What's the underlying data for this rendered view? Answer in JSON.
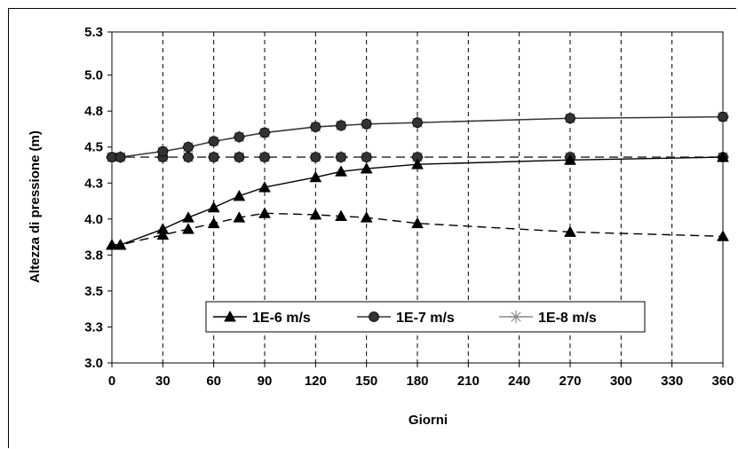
{
  "chart_data": {
    "type": "line",
    "xlabel": "Giorni",
    "ylabel": "Altezza di pressione (m)",
    "xlim": [
      0,
      360
    ],
    "ylim": [
      3.0,
      5.3
    ],
    "x_ticks": [
      0,
      30,
      60,
      90,
      120,
      150,
      180,
      210,
      240,
      270,
      300,
      330,
      360
    ],
    "y_ticks": [
      3.0,
      3.25,
      3.5,
      3.75,
      4.0,
      4.25,
      4.5,
      4.75,
      5.0,
      5.3
    ],
    "y_tick_labels": [
      "3.0",
      "3.3",
      "3.5",
      "3.8",
      "4.0",
      "4.3",
      "4.5",
      "4.8",
      "5.0",
      "5.3"
    ],
    "grid": "vertical dashed",
    "legend_position": "lower-center",
    "series": [
      {
        "name": "1E-6 m/s",
        "marker": "triangle",
        "color": "#000000",
        "solid": {
          "x": [
            0,
            5,
            30,
            45,
            60,
            75,
            90,
            120,
            135,
            150,
            180,
            270,
            360
          ],
          "y": [
            3.82,
            3.82,
            3.93,
            4.01,
            4.08,
            4.16,
            4.22,
            4.29,
            4.33,
            4.35,
            4.38,
            4.41,
            4.43
          ]
        },
        "dashed": {
          "x": [
            0,
            5,
            30,
            45,
            60,
            75,
            90,
            120,
            135,
            150,
            180,
            270,
            360
          ],
          "y": [
            3.82,
            3.82,
            3.89,
            3.93,
            3.97,
            4.01,
            4.04,
            4.03,
            4.02,
            4.01,
            3.97,
            3.91,
            3.88
          ]
        }
      },
      {
        "name": "1E-7 m/s",
        "marker": "circle",
        "color": "#333333",
        "solid": {
          "x": [
            0,
            5,
            30,
            45,
            60,
            75,
            90,
            120,
            135,
            150,
            180,
            270,
            360
          ],
          "y": [
            4.43,
            4.43,
            4.47,
            4.5,
            4.54,
            4.57,
            4.6,
            4.64,
            4.65,
            4.66,
            4.67,
            4.7,
            4.71
          ]
        },
        "dashed": {
          "x": [
            0,
            5,
            30,
            45,
            60,
            75,
            90,
            120,
            135,
            150,
            180,
            270,
            360
          ],
          "y": [
            4.43,
            4.43,
            4.43,
            4.43,
            4.43,
            4.43,
            4.43,
            4.43,
            4.43,
            4.43,
            4.43,
            4.43,
            4.43
          ]
        }
      },
      {
        "name": "1E-8 m/s",
        "marker": "star",
        "color": "#888888",
        "solid": {
          "x": [
            0,
            5,
            30,
            45,
            60,
            75,
            90,
            120,
            135,
            150,
            180,
            270,
            360
          ],
          "y": [
            4.43,
            4.43,
            4.47,
            4.5,
            4.54,
            4.57,
            4.6,
            4.64,
            4.65,
            4.66,
            4.67,
            4.7,
            4.71
          ]
        },
        "dashed": {
          "x": [
            0,
            5,
            30,
            45,
            60,
            75,
            90,
            120,
            135,
            150,
            180,
            270,
            360
          ],
          "y": [
            4.43,
            4.43,
            4.43,
            4.43,
            4.43,
            4.43,
            4.43,
            4.43,
            4.43,
            4.43,
            4.43,
            4.43,
            4.43
          ]
        }
      }
    ]
  }
}
